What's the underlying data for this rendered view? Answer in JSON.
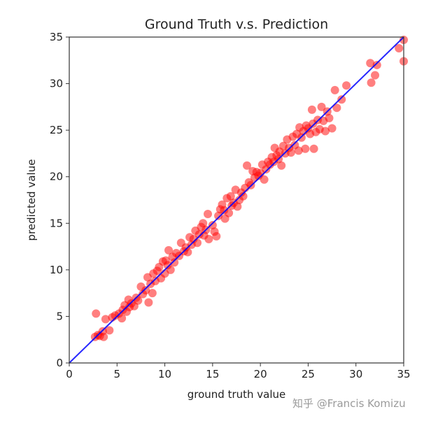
{
  "chart_data": {
    "type": "scatter",
    "title": "Ground Truth v.s. Prediction",
    "xlabel": "ground truth value",
    "ylabel": "predicted value",
    "xlim": [
      0,
      35
    ],
    "ylim": [
      0,
      35
    ],
    "xticks": [
      0,
      5,
      10,
      15,
      20,
      25,
      30,
      35
    ],
    "yticks": [
      0,
      5,
      10,
      15,
      20,
      25,
      30,
      35
    ],
    "grid": false,
    "point_color": "#ff0000",
    "point_alpha": 0.5,
    "line_color": "#0000ff",
    "reference_line": {
      "label": "y = x",
      "from": [
        0,
        0
      ],
      "to": [
        35,
        35
      ]
    },
    "points": [
      [
        2.8,
        5.3
      ],
      [
        2.7,
        2.8
      ],
      [
        3,
        3
      ],
      [
        3.2,
        2.9
      ],
      [
        3.5,
        3.4
      ],
      [
        3.6,
        2.8
      ],
      [
        3.8,
        4.7
      ],
      [
        4.2,
        3.5
      ],
      [
        4.5,
        4.9
      ],
      [
        4.8,
        5.1
      ],
      [
        5.2,
        5.3
      ],
      [
        5.5,
        4.8
      ],
      [
        5.6,
        5.7
      ],
      [
        5.8,
        6.2
      ],
      [
        6,
        5.5
      ],
      [
        6.2,
        6.8
      ],
      [
        6.3,
        6
      ],
      [
        6.5,
        6.4
      ],
      [
        6.8,
        6.1
      ],
      [
        7,
        7
      ],
      [
        7.2,
        6.7
      ],
      [
        7.5,
        8.2
      ],
      [
        7.7,
        7.4
      ],
      [
        8,
        7.8
      ],
      [
        8.2,
        9.2
      ],
      [
        8.3,
        6.5
      ],
      [
        8.5,
        8.5
      ],
      [
        8.7,
        7.5
      ],
      [
        8.8,
        9.6
      ],
      [
        9,
        8.8
      ],
      [
        9.2,
        9.9
      ],
      [
        9.4,
        10.3
      ],
      [
        9.6,
        9.1
      ],
      [
        9.8,
        10.9
      ],
      [
        10,
        9.6
      ],
      [
        10.1,
        11
      ],
      [
        10.3,
        10.5
      ],
      [
        10.4,
        12.1
      ],
      [
        10.6,
        10
      ],
      [
        10.8,
        11.4
      ],
      [
        11,
        10.8
      ],
      [
        11.2,
        11.8
      ],
      [
        11.5,
        11.5
      ],
      [
        11.7,
        12.9
      ],
      [
        12,
        12
      ],
      [
        12.2,
        12.4
      ],
      [
        12.4,
        11.9
      ],
      [
        12.6,
        13.5
      ],
      [
        12.8,
        12.7
      ],
      [
        13,
        13.3
      ],
      [
        13.2,
        14.2
      ],
      [
        13.4,
        12.9
      ],
      [
        13.6,
        13.8
      ],
      [
        13.8,
        14.6
      ],
      [
        14,
        15
      ],
      [
        14.1,
        13.7
      ],
      [
        14.3,
        14.3
      ],
      [
        14.5,
        16
      ],
      [
        14.6,
        13.3
      ],
      [
        15,
        14.8
      ],
      [
        15.2,
        14.1
      ],
      [
        15.4,
        13.6
      ],
      [
        15.6,
        15.8
      ],
      [
        15.8,
        16.5
      ],
      [
        16,
        17
      ],
      [
        16.2,
        16.4
      ],
      [
        16.3,
        15.5
      ],
      [
        16.5,
        17.7
      ],
      [
        16.7,
        16.1
      ],
      [
        16.9,
        17.9
      ],
      [
        17,
        16.9
      ],
      [
        17.2,
        17.2
      ],
      [
        17.4,
        18.6
      ],
      [
        17.6,
        16.8
      ],
      [
        17.8,
        17.5
      ],
      [
        18,
        18.3
      ],
      [
        18.2,
        17.9
      ],
      [
        18.4,
        18.8
      ],
      [
        18.6,
        21.2
      ],
      [
        18.8,
        19.4
      ],
      [
        19,
        19.1
      ],
      [
        19.2,
        20.6
      ],
      [
        19.4,
        19.9
      ],
      [
        19.6,
        20.5
      ],
      [
        19.8,
        20.1
      ],
      [
        20,
        20.4
      ],
      [
        20.2,
        21.3
      ],
      [
        20.4,
        19.7
      ],
      [
        20.6,
        20.8
      ],
      [
        20.8,
        21.6
      ],
      [
        21,
        21.3
      ],
      [
        21.2,
        22.1
      ],
      [
        21.4,
        21.6
      ],
      [
        21.5,
        23.1
      ],
      [
        21.7,
        22.3
      ],
      [
        21.9,
        21.9
      ],
      [
        22,
        22.7
      ],
      [
        22.2,
        21.2
      ],
      [
        22.4,
        23.3
      ],
      [
        22.6,
        22.5
      ],
      [
        22.8,
        24
      ],
      [
        23,
        23.1
      ],
      [
        23.2,
        22.6
      ],
      [
        23.4,
        24.3
      ],
      [
        23.6,
        23.4
      ],
      [
        23.8,
        24.6
      ],
      [
        24,
        22.8
      ],
      [
        24.1,
        25.3
      ],
      [
        24.3,
        24.2
      ],
      [
        24.5,
        24.9
      ],
      [
        24.7,
        23
      ],
      [
        24.8,
        25.5
      ],
      [
        25,
        25.2
      ],
      [
        25.2,
        24.6
      ],
      [
        25.4,
        27.2
      ],
      [
        25.5,
        25.7
      ],
      [
        25.6,
        23
      ],
      [
        25.8,
        24.8
      ],
      [
        26,
        26.1
      ],
      [
        26.2,
        25.1
      ],
      [
        26.4,
        27.5
      ],
      [
        26.6,
        26
      ],
      [
        26.8,
        24.9
      ],
      [
        27,
        27
      ],
      [
        27.2,
        26.3
      ],
      [
        27.5,
        25.2
      ],
      [
        27.8,
        29.3
      ],
      [
        28,
        27.4
      ],
      [
        28.5,
        28.3
      ],
      [
        29,
        29.8
      ],
      [
        31.5,
        32.2
      ],
      [
        31.6,
        30.1
      ],
      [
        32,
        30.9
      ],
      [
        32.2,
        32
      ],
      [
        34.5,
        33.8
      ],
      [
        35,
        34.7
      ],
      [
        35,
        32.4
      ]
    ]
  },
  "watermark": "知乎 @Francis Komizu"
}
